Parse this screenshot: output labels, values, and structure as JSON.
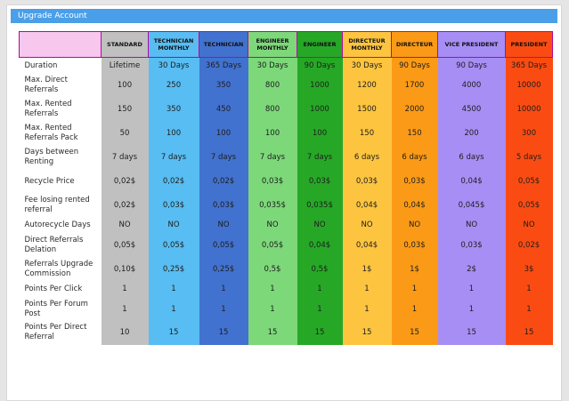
{
  "panel": {
    "title": "Upgrade Account"
  },
  "plans": [
    {
      "name": "STANDARD",
      "color": "#c0c0c0"
    },
    {
      "name": "TECHNICIAN MONTHLY",
      "color": "#58bdf2"
    },
    {
      "name": "TECHNICIAN",
      "color": "#4272cf"
    },
    {
      "name": "ENGINEER MONTHLY",
      "color": "#7dd87a"
    },
    {
      "name": "ENGINEER",
      "color": "#26a826"
    },
    {
      "name": "DIRECTEUR MONTHLY",
      "color": "#fdc440"
    },
    {
      "name": "DIRECTEUR",
      "color": "#fb9a16"
    },
    {
      "name": "VICE PRESIDENT",
      "color": "#a78ef4"
    },
    {
      "name": "PRESIDENT",
      "color": "#fa4c12"
    }
  ],
  "rows": [
    {
      "label": "Duration",
      "values": [
        "Lifetime",
        "30 Days",
        "365 Days",
        "30 Days",
        "90 Days",
        "30 Days",
        "90 Days",
        "90 Days",
        "365 Days"
      ]
    },
    {
      "label": "Max. Direct Referrals",
      "values": [
        "100",
        "250",
        "350",
        "800",
        "1000",
        "1200",
        "1700",
        "4000",
        "10000"
      ]
    },
    {
      "label": "Max. Rented Referrals",
      "values": [
        "150",
        "350",
        "450",
        "800",
        "1000",
        "1500",
        "2000",
        "4500",
        "10000"
      ]
    },
    {
      "label": "Max. Rented Referrals Pack",
      "values": [
        "50",
        "100",
        "100",
        "100",
        "100",
        "150",
        "150",
        "200",
        "300"
      ]
    },
    {
      "label": "Days between Renting",
      "values": [
        "7 days",
        "7 days",
        "7 days",
        "7 days",
        "7 days",
        "6 days",
        "6 days",
        "6 days",
        "5 days"
      ]
    },
    {
      "label": "Recycle Price",
      "values": [
        "0,02$",
        "0,02$",
        "0,02$",
        "0,03$",
        "0,03$",
        "0,03$",
        "0,03$",
        "0,04$",
        "0,05$"
      ]
    },
    {
      "label": "Fee losing rented referral",
      "values": [
        "0,02$",
        "0,03$",
        "0,03$",
        "0,035$",
        "0,035$",
        "0,04$",
        "0,04$",
        "0,045$",
        "0,05$"
      ]
    },
    {
      "label": "Autorecycle Days",
      "values": [
        "NO",
        "NO",
        "NO",
        "NO",
        "NO",
        "NO",
        "NO",
        "NO",
        "NO"
      ]
    },
    {
      "label": "Direct Referrals Delation",
      "values": [
        "0,05$",
        "0,05$",
        "0,05$",
        "0,05$",
        "0,04$",
        "0,04$",
        "0,03$",
        "0,03$",
        "0,02$"
      ]
    },
    {
      "label": "Referrals Upgrade Commission",
      "values": [
        "0,10$",
        "0,25$",
        "0,25$",
        "0,5$",
        "0,5$",
        "1$",
        "1$",
        "2$",
        "3$"
      ]
    },
    {
      "label": "Points Per Click",
      "values": [
        "1",
        "1",
        "1",
        "1",
        "1",
        "1",
        "1",
        "1",
        "1"
      ]
    },
    {
      "label": "Points Per Forum Post",
      "values": [
        "1",
        "1",
        "1",
        "1",
        "1",
        "1",
        "1",
        "1",
        "1"
      ]
    },
    {
      "label": "Points Per Direct Referral",
      "values": [
        "10",
        "15",
        "15",
        "15",
        "15",
        "15",
        "15",
        "15",
        "15"
      ]
    }
  ]
}
